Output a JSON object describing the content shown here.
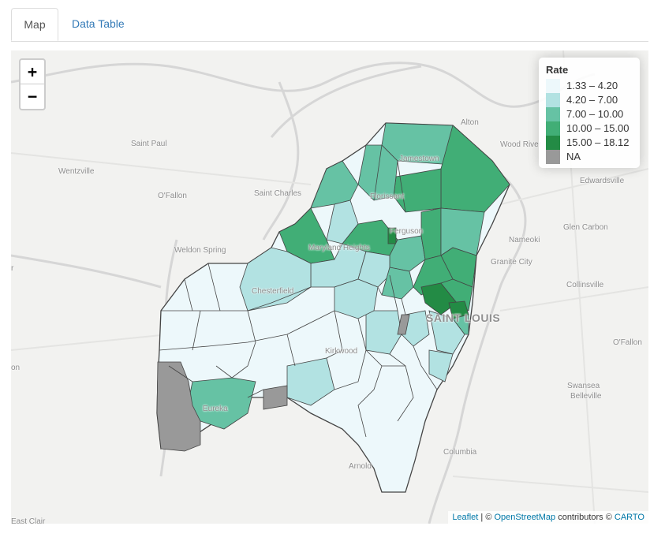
{
  "tabs": [
    {
      "label": "Map",
      "active": true
    },
    {
      "label": "Data Table",
      "active": false
    }
  ],
  "zoom": {
    "in_label": "+",
    "out_label": "−"
  },
  "legend": {
    "title": "Rate",
    "items": [
      {
        "label": "1.33 – 4.20",
        "color": "#edf8fb"
      },
      {
        "label": "4.20 – 7.00",
        "color": "#b2e2e2"
      },
      {
        "label": "7.00 – 10.00",
        "color": "#66c2a4"
      },
      {
        "label": "10.00 – 15.00",
        "color": "#41ae76"
      },
      {
        "label": "15.00 – 18.12",
        "color": "#238b45"
      },
      {
        "label": "NA",
        "color": "#999999"
      }
    ]
  },
  "places": {
    "alton": "Alton",
    "wood_river": "Wood River",
    "saint_paul": "Saint Paul",
    "wentzville": "Wentzville",
    "ofallon_mo": "O'Fallon",
    "saint_charles": "Saint Charles",
    "edwardsville": "Edwardsville",
    "weldon_spring": "Weldon Spring",
    "nameoki": "Nameoki",
    "glen_carbon": "Glen Carbon",
    "granite_city": "Granite City",
    "collinsville": "Collinsville",
    "st_louis": "SAINT LOUIS",
    "ofallon_il": "O'Fallon",
    "swansea": "Swansea",
    "belleville": "Belleville",
    "columbia": "Columbia",
    "arnold": "Arnold",
    "eureka": "Eureka",
    "kirkwood": "Kirkwood",
    "chesterfield": "Chesterfield",
    "maryland_heights": "Maryland Heights",
    "florissant": "Florissant",
    "ferguson": "Ferguson",
    "jamestown": "Jamestown",
    "on_edge": "on",
    "r_edge": "r",
    "east_clair": "East Clair"
  },
  "attribution": {
    "leaflet": "Leaflet",
    "sep": " | © ",
    "osm": "OpenStreetMap",
    "contrib": " contributors © ",
    "carto": "CARTO"
  }
}
